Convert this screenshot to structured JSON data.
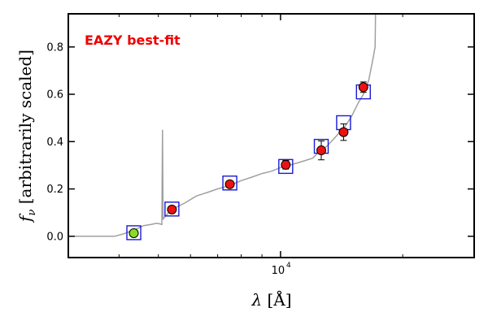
{
  "chart_data": {
    "type": "scatter",
    "title": "",
    "xlabel": "λ [Å]",
    "ylabel": "f_ν [arbitrarily scaled]",
    "ylabel_symbol": "f",
    "ylabel_sub": "ν",
    "ylabel_text": " [arbitrarily scaled]",
    "xlabel_symbol": "λ",
    "xlabel_text": " [Å]",
    "x_scale": "log",
    "xlim": [
      3000,
      30000
    ],
    "ylim": [
      -0.09,
      0.94
    ],
    "yticks": [
      0.0,
      0.2,
      0.4,
      0.6,
      0.8
    ],
    "ytick_labels": [
      "0.0",
      "0.2",
      "0.4",
      "0.6",
      "0.8"
    ],
    "xtick_major": [
      10000
    ],
    "xtick_major_labels": [
      "10"
    ],
    "xtick_exponent": "4",
    "xtick_minor": [
      4000,
      5000,
      6000,
      7000,
      8000,
      9000,
      20000
    ],
    "grid": false,
    "legend": "none",
    "annotation": {
      "text": "EAZY best-fit",
      "color": "#ee0000"
    },
    "colors": {
      "sed": "#a0a0a0",
      "model_box": "#1a1ad6",
      "observed": "#ee1111",
      "highlight": "#88dd22"
    },
    "model_photometry": [
      {
        "x": 4350,
        "y": 0.015
      },
      {
        "x": 5400,
        "y": 0.115
      },
      {
        "x": 7500,
        "y": 0.225
      },
      {
        "x": 10300,
        "y": 0.295
      },
      {
        "x": 12600,
        "y": 0.38
      },
      {
        "x": 14300,
        "y": 0.48
      },
      {
        "x": 16000,
        "y": 0.61
      }
    ],
    "observed_photometry": [
      {
        "x": 4350,
        "y": 0.013,
        "err": 0.005,
        "color": "#88dd22"
      },
      {
        "x": 5400,
        "y": 0.113,
        "err": 0.012,
        "color": "#ee1111"
      },
      {
        "x": 7500,
        "y": 0.22,
        "err": 0.01,
        "color": "#ee1111"
      },
      {
        "x": 10300,
        "y": 0.302,
        "err": 0.018,
        "color": "#ee1111"
      },
      {
        "x": 12600,
        "y": 0.363,
        "err": 0.04,
        "color": "#ee1111"
      },
      {
        "x": 14300,
        "y": 0.44,
        "err": 0.035,
        "color": "#ee1111"
      },
      {
        "x": 16000,
        "y": 0.63,
        "err": 0.022,
        "color": "#ee1111"
      }
    ],
    "sed_spectrum": [
      [
        3000,
        0.0
      ],
      [
        3500,
        0.0
      ],
      [
        3900,
        0.0
      ],
      [
        4100,
        0.01
      ],
      [
        4400,
        0.03
      ],
      [
        4600,
        0.045
      ],
      [
        4800,
        0.05
      ],
      [
        4950,
        0.055
      ],
      [
        5050,
        0.052
      ],
      [
        5100,
        0.05
      ],
      [
        5120,
        0.45
      ],
      [
        5135,
        0.07
      ],
      [
        5150,
        0.075
      ],
      [
        5300,
        0.1
      ],
      [
        5500,
        0.12
      ],
      [
        5800,
        0.14
      ],
      [
        6200,
        0.17
      ],
      [
        6600,
        0.185
      ],
      [
        7000,
        0.2
      ],
      [
        7500,
        0.215
      ],
      [
        8000,
        0.235
      ],
      [
        8500,
        0.25
      ],
      [
        9000,
        0.265
      ],
      [
        9500,
        0.275
      ],
      [
        10000,
        0.29
      ],
      [
        10500,
        0.3
      ],
      [
        11000,
        0.31
      ],
      [
        11500,
        0.32
      ],
      [
        12000,
        0.33
      ],
      [
        12500,
        0.36
      ],
      [
        13000,
        0.38
      ],
      [
        13500,
        0.41
      ],
      [
        14000,
        0.44
      ],
      [
        14500,
        0.47
      ],
      [
        15000,
        0.51
      ],
      [
        15500,
        0.56
      ],
      [
        16000,
        0.6
      ],
      [
        16500,
        0.66
      ],
      [
        16900,
        0.75
      ],
      [
        17100,
        0.8
      ],
      [
        17150,
        0.96
      ]
    ]
  }
}
